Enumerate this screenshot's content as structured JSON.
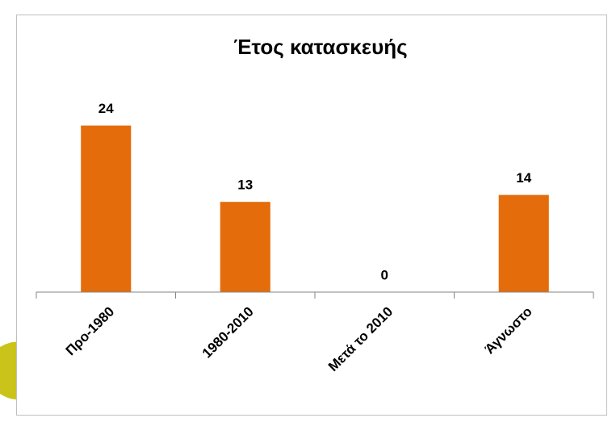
{
  "chart_data": {
    "type": "bar",
    "title": "Έτος κατασκευής",
    "categories": [
      "Προ-1980",
      "1980-2010",
      "Μετά το 2010",
      "Άγνωστο"
    ],
    "values": [
      24,
      13,
      0,
      14
    ],
    "color": "#e46c0a",
    "ylim": [
      0,
      30
    ],
    "data_labels": true
  }
}
